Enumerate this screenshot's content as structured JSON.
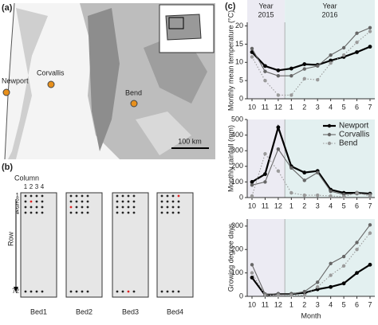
{
  "panels": [
    "(a)",
    "(b)",
    "(c)"
  ],
  "map": {
    "cities": [
      "Newport",
      "Corvallis",
      "Bend"
    ],
    "scale": "100 km"
  },
  "beds": {
    "column_label": "Column",
    "columns": [
      "1",
      "2",
      "3",
      "4"
    ],
    "row_label": "Row",
    "rows": [
      "1",
      "2",
      "3",
      "4",
      "72"
    ],
    "names": [
      "Bed1",
      "Bed2",
      "Bed3",
      "Bed4"
    ]
  },
  "periods": [
    [
      "Year",
      "2015"
    ],
    [
      "Year",
      "2016"
    ]
  ],
  "chart_data": [
    {
      "type": "line",
      "y_label": "Monthly mean temperature (°C)",
      "categories": [
        "10",
        "11",
        "12",
        "1",
        "2",
        "3",
        "4",
        "5",
        "6",
        "7"
      ],
      "ylim": [
        0,
        21
      ],
      "yticks": [
        0,
        5,
        10,
        15,
        20
      ],
      "series": [
        {
          "name": "Newport",
          "color": "#000000",
          "style": "solid",
          "values": [
            12.8,
            9,
            7.8,
            8.3,
            9.5,
            9.3,
            10.5,
            11.5,
            12.8,
            14.3
          ]
        },
        {
          "name": "Corvallis",
          "color": "#666666",
          "style": "solid",
          "values": [
            13.8,
            7.5,
            6.3,
            6.3,
            8.2,
            9,
            12,
            14,
            18,
            19.5
          ]
        },
        {
          "name": "Bend",
          "color": "#9a9a9a",
          "style": "dotted",
          "values": [
            11.5,
            5,
            1,
            1,
            5.5,
            5.2,
            9.8,
            12,
            15.5,
            18.5
          ]
        }
      ]
    },
    {
      "type": "line",
      "y_label": "Monthly rainfall (mm)",
      "legend": "upper right",
      "categories": [
        "10",
        "11",
        "12",
        "1",
        "2",
        "3",
        "4",
        "5",
        "6",
        "7"
      ],
      "ylim": [
        0,
        500
      ],
      "yticks": [
        0,
        100,
        200,
        300,
        400,
        500
      ],
      "series": [
        {
          "name": "Newport",
          "color": "#000000",
          "style": "solid",
          "values": [
            100,
            150,
            450,
            200,
            160,
            170,
            50,
            30,
            30,
            25
          ]
        },
        {
          "name": "Corvallis",
          "color": "#666666",
          "style": "solid",
          "values": [
            80,
            100,
            310,
            190,
            110,
            160,
            40,
            20,
            25,
            20
          ]
        },
        {
          "name": "Bend",
          "color": "#9a9a9a",
          "style": "dotted",
          "values": [
            10,
            280,
            170,
            30,
            15,
            15,
            10,
            5,
            30,
            10
          ]
        }
      ]
    },
    {
      "type": "line",
      "y_label": "Growing degree days",
      "x_label": "Month",
      "categories": [
        "10",
        "11",
        "12",
        "1",
        "2",
        "3",
        "4",
        "5",
        "6",
        "7"
      ],
      "ylim": [
        0,
        330
      ],
      "yticks": [
        0,
        100,
        200,
        300
      ],
      "series": [
        {
          "name": "Newport",
          "color": "#000000",
          "style": "solid",
          "values": [
            80,
            5,
            10,
            10,
            15,
            30,
            40,
            55,
            100,
            135
          ]
        },
        {
          "name": "Corvallis",
          "color": "#666666",
          "style": "solid",
          "values": [
            135,
            10,
            10,
            10,
            20,
            60,
            140,
            170,
            230,
            305
          ]
        },
        {
          "name": "Bend",
          "color": "#9a9a9a",
          "style": "dotted",
          "values": [
            100,
            5,
            5,
            5,
            5,
            40,
            90,
            130,
            200,
            270
          ]
        }
      ]
    }
  ]
}
